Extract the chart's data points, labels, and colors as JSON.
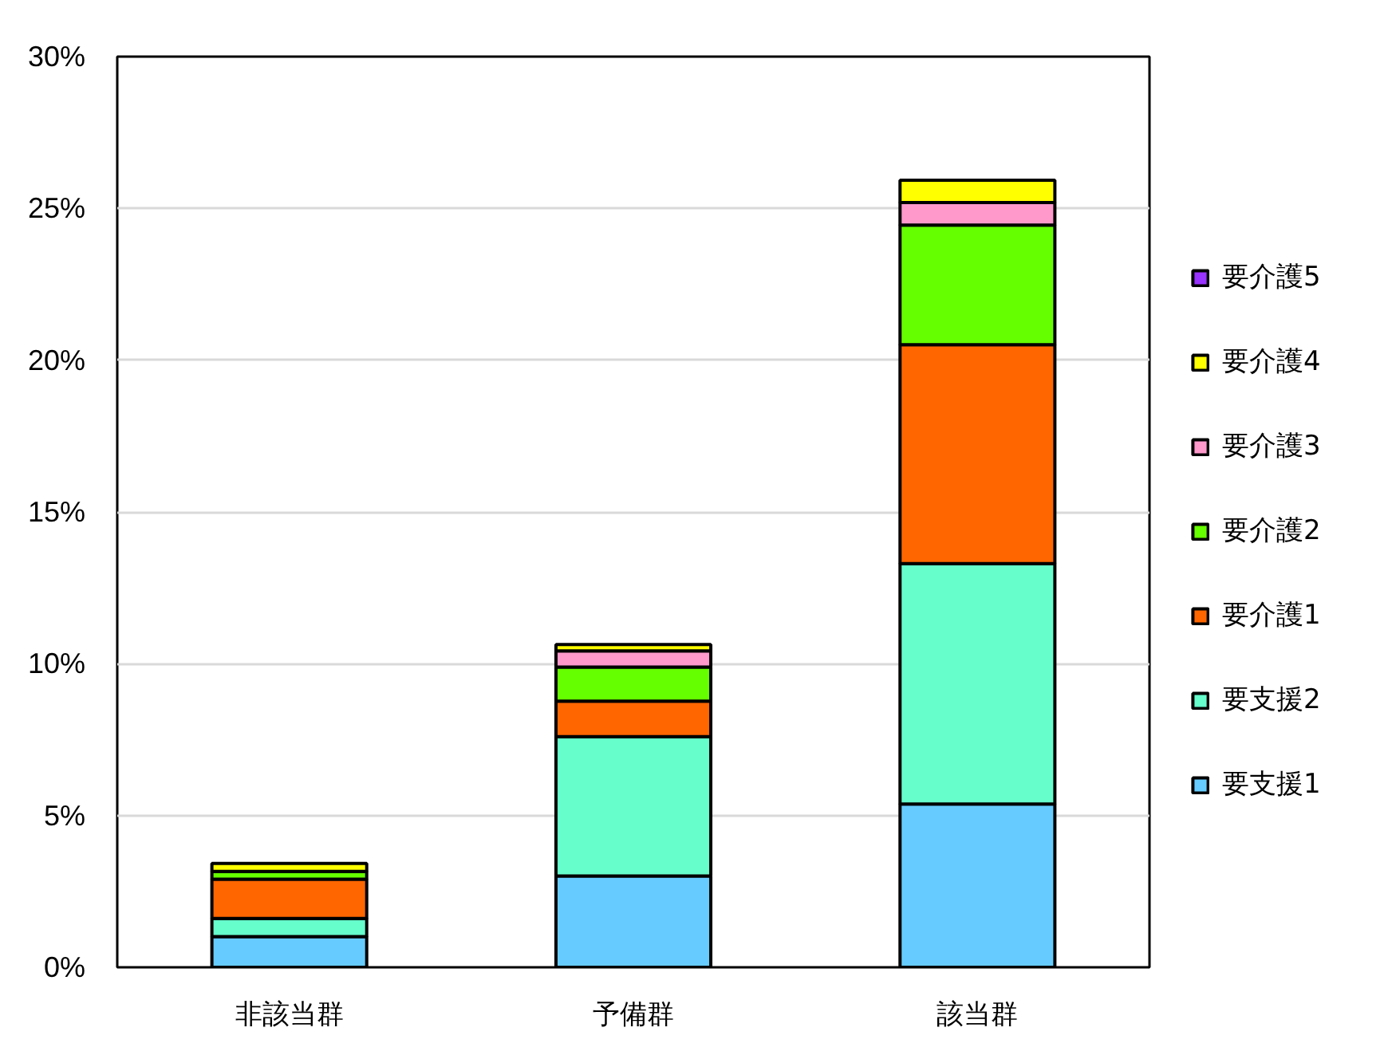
{
  "chart_data": {
    "type": "bar",
    "stacked": true,
    "categories": [
      "非該当群",
      "予備群",
      "該当群"
    ],
    "series": [
      {
        "name": "要支援1",
        "color": "#66ccff",
        "values": [
          1.01,
          3.01,
          5.38
        ]
      },
      {
        "name": "要支援2",
        "color": "#66ffcc",
        "values": [
          0.6,
          4.59,
          7.92
        ]
      },
      {
        "name": "要介護1",
        "color": "#ff6600",
        "values": [
          1.29,
          1.17,
          7.21
        ]
      },
      {
        "name": "要介護2",
        "color": "#66ff00",
        "values": [
          0.26,
          1.12,
          3.94
        ]
      },
      {
        "name": "要介護3",
        "color": "#ff99cc",
        "values": [
          0,
          0.53,
          0.74
        ]
      },
      {
        "name": "要介護4",
        "color": "#ffff00",
        "values": [
          0.26,
          0.21,
          0.74
        ]
      },
      {
        "name": "要介護5",
        "color": "#9933ff",
        "values": [
          0,
          0,
          0
        ]
      }
    ],
    "ylim": [
      0,
      30
    ],
    "yticks": [
      {
        "value": 0,
        "label": "0%"
      },
      {
        "value": 5,
        "label": "5%"
      },
      {
        "value": 10,
        "label": "10%"
      },
      {
        "value": 15,
        "label": "15%"
      },
      {
        "value": 20,
        "label": "20%"
      },
      {
        "value": 25,
        "label": "25%"
      },
      {
        "value": 30,
        "label": "30%"
      }
    ],
    "grid": "y",
    "legend": "right"
  }
}
